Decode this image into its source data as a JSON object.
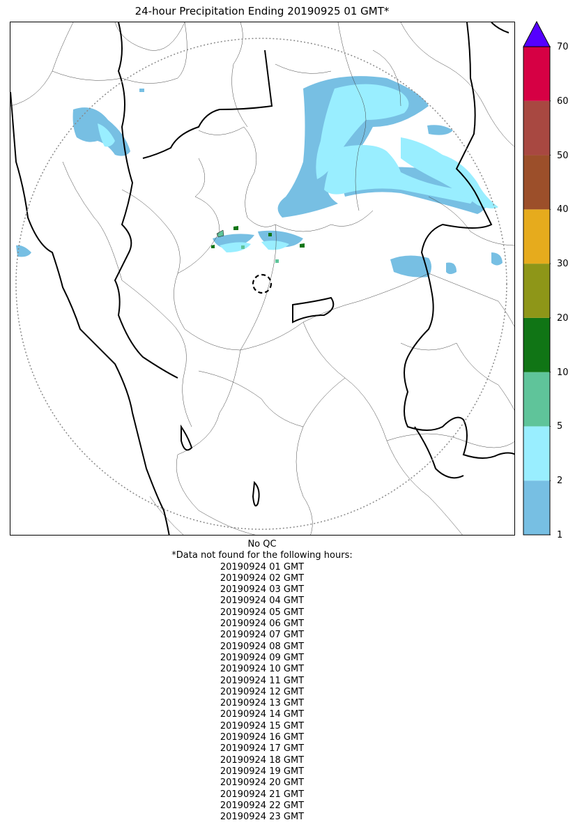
{
  "title": "24-hour Precipitation Ending 20190925 01 GMT*",
  "colorbar": {
    "ticks": [
      "1",
      "2",
      "5",
      "10",
      "20",
      "30",
      "40",
      "50",
      "60",
      "70"
    ],
    "bins": [
      {
        "from": "1",
        "to": "2",
        "color": "#77bfe3"
      },
      {
        "from": "2",
        "to": "5",
        "color": "#99eeff"
      },
      {
        "from": "5",
        "to": "10",
        "color": "#5fc49a"
      },
      {
        "from": "10",
        "to": "20",
        "color": "#107515"
      },
      {
        "from": "20",
        "to": "30",
        "color": "#8e9618"
      },
      {
        "from": "30",
        "to": "40",
        "color": "#e6ab1d"
      },
      {
        "from": "40",
        "to": "50",
        "color": "#9c4f2a"
      },
      {
        "from": "50",
        "to": "60",
        "color": "#a84841"
      },
      {
        "from": "60",
        "to": "70",
        "color": "#d60044"
      }
    ],
    "extend_color": "#5500ff"
  },
  "qc_text": "No QC",
  "missing_header": "*Data not found for the following hours:",
  "missing_hours": [
    "20190924 01 GMT",
    "20190924 02 GMT",
    "20190924 03 GMT",
    "20190924 04 GMT",
    "20190924 05 GMT",
    "20190924 06 GMT",
    "20190924 07 GMT",
    "20190924 08 GMT",
    "20190924 09 GMT",
    "20190924 10 GMT",
    "20190924 11 GMT",
    "20190924 12 GMT",
    "20190924 13 GMT",
    "20190924 14 GMT",
    "20190924 15 GMT",
    "20190924 16 GMT",
    "20190924 17 GMT",
    "20190924 18 GMT",
    "20190924 19 GMT",
    "20190924 20 GMT",
    "20190924 21 GMT",
    "20190924 22 GMT",
    "20190924 23 GMT"
  ]
}
